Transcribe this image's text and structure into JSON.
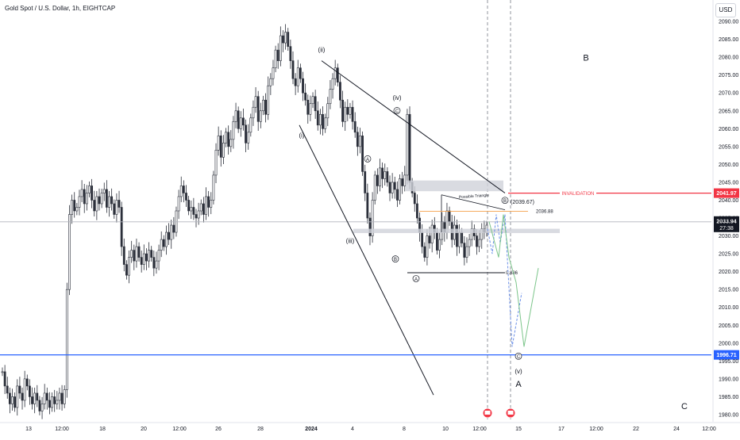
{
  "header": {
    "title": "Gold Spot / U.S. Dollar, 1h, EIGHTCAP",
    "currency_button": "USD"
  },
  "colors": {
    "up": "#2a2e39",
    "grid": "#e0e3eb",
    "invalidation": "#f23645",
    "support": "#2962ff",
    "price_line": "#b2b5be",
    "zone": "#cfd2d9",
    "blue_path": "#6a8fe8",
    "green_path": "#7cc58a",
    "fib_orange": "#f5a04a"
  },
  "chart_data": {
    "type": "candlestick",
    "symbol": "Gold Spot / U.S. Dollar",
    "interval": "1h",
    "exchange": "EIGHTCAP",
    "y_ticks": [
      1980,
      1985,
      1990,
      1995,
      2000,
      2005,
      2010,
      2015,
      2020,
      2025,
      2030,
      2035,
      2040,
      2045,
      2050,
      2055,
      2060,
      2065,
      2070,
      2075,
      2080,
      2085,
      2090
    ],
    "y_tick_labels": [
      "1980.00",
      "1985.00",
      "1990.00",
      "1995.00",
      "2000.00",
      "2005.00",
      "2010.00",
      "2015.00",
      "2020.00",
      "2025.00",
      "2030.00",
      "2035.00",
      "2040.00",
      "2045.00",
      "2050.00",
      "2055.00",
      "2060.00",
      "2065.00",
      "2070.00",
      "2075.00",
      "2080.00",
      "2085.00",
      "2090.00"
    ],
    "ylim": [
      1978,
      2096
    ],
    "x_labels": [
      "13",
      "12:00",
      "18",
      "20",
      "12:00",
      "26",
      "28",
      "2024",
      "4",
      "8",
      "10",
      "12:00",
      "15",
      "17",
      "12:00",
      "22",
      "24",
      "12:00"
    ],
    "close_series": [
      1992,
      1988,
      1986,
      1983,
      1985,
      1982,
      1988,
      1986,
      1984,
      1990,
      1988,
      1985,
      1983,
      1986,
      1984,
      1981,
      1983,
      1986,
      1984,
      1982,
      1985,
      1983,
      1984,
      1986,
      1983,
      1987,
      2015,
      2036,
      2040,
      2037,
      2038,
      2041,
      2043,
      2039,
      2042,
      2044,
      2040,
      2037,
      2041,
      2039,
      2042,
      2043,
      2038,
      2041,
      2039,
      2036,
      2040,
      2038,
      2027,
      2022,
      2019,
      2024,
      2026,
      2023,
      2027,
      2024,
      2022,
      2025,
      2023,
      2026,
      2024,
      2021,
      2023,
      2026,
      2029,
      2027,
      2031,
      2029,
      2033,
      2031,
      2037,
      2041,
      2044,
      2042,
      2040,
      2037,
      2038,
      2036,
      2035,
      2037,
      2039,
      2036,
      2041,
      2038,
      2040,
      2047,
      2054,
      2058,
      2052,
      2056,
      2059,
      2055,
      2057,
      2062,
      2065,
      2060,
      2063,
      2061,
      2056,
      2059,
      2063,
      2066,
      2069,
      2062,
      2065,
      2068,
      2064,
      2072,
      2074,
      2077,
      2082,
      2079,
      2086,
      2084,
      2087,
      2083,
      2079,
      2074,
      2072,
      2077,
      2074,
      2070,
      2068,
      2064,
      2067,
      2069,
      2065,
      2061,
      2064,
      2060,
      2063,
      2067,
      2071,
      2074,
      2077,
      2073,
      2068,
      2062,
      2066,
      2064,
      2066,
      2062,
      2059,
      2055,
      2058,
      2048,
      2042,
      2035,
      2030,
      2040,
      2047,
      2044,
      2049,
      2046,
      2048,
      2045,
      2042,
      2045,
      2043,
      2040,
      2046,
      2044,
      2047,
      2064,
      2045,
      2042,
      2039,
      2035,
      2031,
      2027,
      2024,
      2030,
      2028,
      2033,
      2031,
      2026,
      2029,
      2034,
      2031,
      2037,
      2034,
      2029,
      2033,
      2027,
      2031,
      2028,
      2024,
      2027,
      2029,
      2032,
      2030,
      2027,
      2029,
      2032,
      2031,
      2033
    ],
    "current_price": "2033.94",
    "countdown": "27:38",
    "levels": [
      {
        "name": "INVALIDATION",
        "value": 2041.97,
        "label": "2041.97"
      },
      {
        "name": "support",
        "value": 1996.71,
        "label": "1996.71"
      }
    ],
    "annotations": {
      "wave_labels": [
        "(ii)",
        "(i)",
        "(iii)",
        "(iv)",
        "(v)",
        "A",
        "B",
        "C"
      ],
      "circled": [
        "A",
        "B",
        "C",
        "A",
        "B",
        "C"
      ],
      "invalidation_text": "INVALIDATION",
      "price_note_1": "(2039.67)",
      "price_note_2": "2036.88",
      "fib_label": "0.886",
      "triangle_text": "Possible Triangle"
    }
  }
}
